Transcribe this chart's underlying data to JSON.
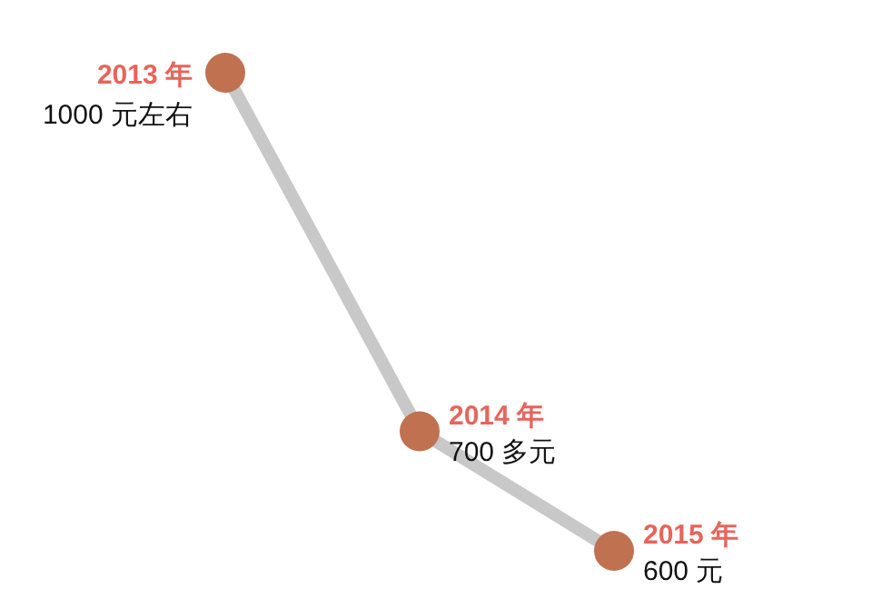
{
  "chart_data": {
    "type": "line",
    "categories": [
      "2013 年",
      "2014 年",
      "2015 年"
    ],
    "series": [
      {
        "color": "#c8c8c8",
        "colors": [
          "#c0714f",
          "#c0714f",
          "#c0714f"
        ],
        "values": [
          1000,
          700,
          600
        ],
        "value_labels": [
          "1000 元左右",
          "700 多元",
          "600 元"
        ]
      }
    ],
    "marker": "circle",
    "line_style": "solid"
  }
}
